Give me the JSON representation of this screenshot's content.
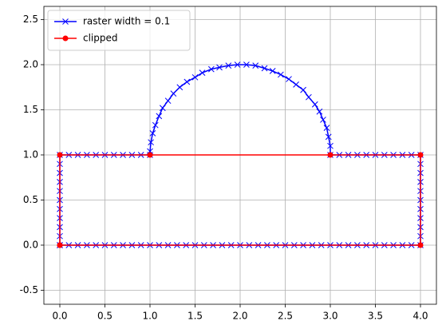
{
  "chart_data": {
    "type": "line",
    "xlim": [
      -0.177,
      4.177
    ],
    "ylim": [
      -0.655,
      2.646
    ],
    "xticks": [
      {
        "value": 0,
        "label": "0.0"
      },
      0.5,
      {
        "value": 1,
        "label": "1.0"
      },
      1.5,
      {
        "value": 2,
        "label": "2.0"
      },
      2.5,
      {
        "value": 3,
        "label": "3.0"
      },
      3.5,
      {
        "value": 4,
        "label": "4.0"
      }
    ],
    "yticks": [
      -0.5,
      {
        "value": 0,
        "label": "0.0"
      },
      0.5,
      {
        "value": 1,
        "label": "1.0"
      },
      1.5,
      {
        "value": 2,
        "label": "2.0"
      },
      2.5
    ],
    "grid": true,
    "legend": "upper left",
    "series": [
      {
        "name": "raster width = 0.1",
        "color": "#0000ff",
        "marker": "x",
        "x": [
          0,
          0.1,
          0.2,
          0.3,
          0.4,
          0.5,
          0.6,
          0.7,
          0.8,
          0.9,
          1,
          1.1,
          1.2,
          1.3,
          1.4,
          1.5,
          1.6,
          1.7,
          1.8,
          1.9,
          2,
          2.1,
          2.2,
          2.3,
          2.4,
          2.5,
          2.6,
          2.7,
          2.8,
          2.9,
          3,
          3.1,
          3.2,
          3.3,
          3.4,
          3.5,
          3.6,
          3.7,
          3.8,
          3.9,
          4,
          4,
          4,
          4,
          4,
          4,
          4,
          4,
          4,
          4,
          4,
          3.9,
          3.8,
          3.7,
          3.6,
          3.5,
          3.4,
          3.3,
          3.2,
          3.1,
          3,
          3,
          2.98,
          2.96,
          2.92,
          2.88,
          2.83,
          2.76,
          2.7,
          2.62,
          2.54,
          2.45,
          2.36,
          2.27,
          2.17,
          2.07,
          1.97,
          1.87,
          1.77,
          1.68,
          1.58,
          1.5,
          1.41,
          1.33,
          1.26,
          1.2,
          1.14,
          1.1,
          1.06,
          1.03,
          1.01,
          1,
          1,
          0.9,
          0.8,
          0.7,
          0.6,
          0.5,
          0.4,
          0.3,
          0.2,
          0.1,
          0,
          0,
          0,
          0,
          0,
          0,
          0,
          0,
          0,
          0,
          0
        ],
        "values": [
          0,
          0,
          0,
          0,
          0,
          0,
          0,
          0,
          0,
          0,
          0,
          0,
          0,
          0,
          0,
          0,
          0,
          0,
          0,
          0,
          0,
          0,
          0,
          0,
          0,
          0,
          0,
          0,
          0,
          0,
          0,
          0,
          0,
          0,
          0,
          0,
          0,
          0,
          0,
          0,
          0,
          0.1,
          0.2,
          0.3,
          0.4,
          0.5,
          0.6,
          0.7,
          0.8,
          0.9,
          1,
          1,
          1,
          1,
          1,
          1,
          1,
          1,
          1,
          1,
          1,
          1.1,
          1.2,
          1.3,
          1.39,
          1.48,
          1.56,
          1.64,
          1.72,
          1.78,
          1.84,
          1.89,
          1.93,
          1.96,
          1.99,
          2,
          2,
          1.99,
          1.97,
          1.95,
          1.91,
          1.86,
          1.81,
          1.75,
          1.68,
          1.6,
          1.52,
          1.43,
          1.33,
          1.24,
          1.14,
          1.04,
          1,
          1,
          1,
          1,
          1,
          1,
          1,
          1,
          1,
          1,
          1,
          0.9,
          0.8,
          0.7,
          0.6,
          0.5,
          0.4,
          0.3,
          0.2,
          0.1,
          0
        ]
      },
      {
        "name": "clipped",
        "color": "#ff0000",
        "marker": "o",
        "x": [
          0,
          4,
          4,
          3,
          1,
          0,
          0
        ],
        "values": [
          0,
          0,
          1,
          1,
          1,
          1,
          0
        ]
      }
    ]
  }
}
